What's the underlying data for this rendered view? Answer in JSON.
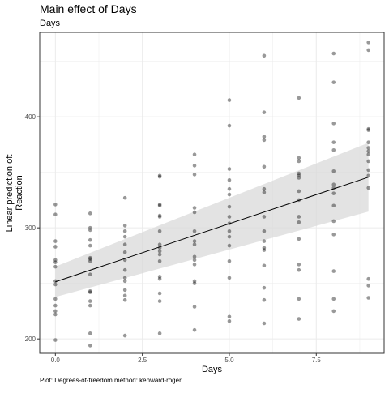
{
  "title": "Main effect of Days",
  "subtitle": "Days",
  "caption": "Plot: Degrees-of-freedom method: kenward-roger",
  "chart_data": {
    "type": "scatter",
    "title": "Main effect of Days",
    "subtitle": "Days",
    "xlabel": "Days",
    "ylabel_lines": [
      "Linear prediction of:",
      "Reaction"
    ],
    "xlim": [
      -0.45,
      9.45
    ],
    "ylim": [
      187,
      476
    ],
    "x_ticks": [
      0,
      2.5,
      5,
      7.5
    ],
    "x_tick_labels": [
      "0.0",
      "2.5",
      "5.0",
      "7.5"
    ],
    "y_ticks": [
      200,
      300,
      400
    ],
    "y_tick_labels": [
      "200",
      "300",
      "400"
    ],
    "grid": true,
    "legend": "none",
    "fit_line": {
      "x": [
        0,
        9
      ],
      "y": [
        251.4,
        345.6
      ]
    },
    "confidence_band": {
      "x": [
        0,
        9
      ],
      "lower": [
        237.7,
        314.6
      ],
      "upper": [
        265.1,
        376.6
      ]
    },
    "points": [
      {
        "x": 0,
        "y": 199
      },
      {
        "x": 0,
        "y": 222
      },
      {
        "x": 0,
        "y": 225
      },
      {
        "x": 0,
        "y": 230
      },
      {
        "x": 0,
        "y": 236
      },
      {
        "x": 0,
        "y": 249
      },
      {
        "x": 0,
        "y": 252
      },
      {
        "x": 0,
        "y": 265
      },
      {
        "x": 0,
        "y": 269
      },
      {
        "x": 0,
        "y": 271
      },
      {
        "x": 0,
        "y": 283
      },
      {
        "x": 0,
        "y": 288
      },
      {
        "x": 0,
        "y": 312
      },
      {
        "x": 0,
        "y": 321
      },
      {
        "x": 1,
        "y": 194
      },
      {
        "x": 1,
        "y": 205
      },
      {
        "x": 1,
        "y": 230
      },
      {
        "x": 1,
        "y": 234
      },
      {
        "x": 1,
        "y": 242
      },
      {
        "x": 1,
        "y": 243
      },
      {
        "x": 1,
        "y": 258
      },
      {
        "x": 1,
        "y": 270
      },
      {
        "x": 1,
        "y": 272
      },
      {
        "x": 1,
        "y": 273
      },
      {
        "x": 1,
        "y": 284
      },
      {
        "x": 1,
        "y": 289
      },
      {
        "x": 1,
        "y": 298
      },
      {
        "x": 1,
        "y": 300
      },
      {
        "x": 1,
        "y": 313
      },
      {
        "x": 2,
        "y": 203
      },
      {
        "x": 2,
        "y": 235
      },
      {
        "x": 2,
        "y": 239
      },
      {
        "x": 2,
        "y": 244
      },
      {
        "x": 2,
        "y": 252
      },
      {
        "x": 2,
        "y": 255
      },
      {
        "x": 2,
        "y": 262
      },
      {
        "x": 2,
        "y": 271
      },
      {
        "x": 2,
        "y": 278
      },
      {
        "x": 2,
        "y": 285
      },
      {
        "x": 2,
        "y": 292
      },
      {
        "x": 2,
        "y": 297
      },
      {
        "x": 2,
        "y": 302
      },
      {
        "x": 2,
        "y": 327
      },
      {
        "x": 3,
        "y": 205
      },
      {
        "x": 3,
        "y": 234
      },
      {
        "x": 3,
        "y": 241
      },
      {
        "x": 3,
        "y": 254
      },
      {
        "x": 3,
        "y": 256
      },
      {
        "x": 3,
        "y": 270
      },
      {
        "x": 3,
        "y": 276
      },
      {
        "x": 3,
        "y": 279
      },
      {
        "x": 3,
        "y": 282
      },
      {
        "x": 3,
        "y": 285
      },
      {
        "x": 3,
        "y": 297
      },
      {
        "x": 3,
        "y": 310
      },
      {
        "x": 3,
        "y": 311
      },
      {
        "x": 3,
        "y": 320
      },
      {
        "x": 3,
        "y": 321
      },
      {
        "x": 3,
        "y": 346
      },
      {
        "x": 3,
        "y": 347
      },
      {
        "x": 4,
        "y": 208
      },
      {
        "x": 4,
        "y": 229
      },
      {
        "x": 4,
        "y": 250
      },
      {
        "x": 4,
        "y": 252
      },
      {
        "x": 4,
        "y": 267
      },
      {
        "x": 4,
        "y": 271
      },
      {
        "x": 4,
        "y": 274
      },
      {
        "x": 4,
        "y": 285
      },
      {
        "x": 4,
        "y": 288
      },
      {
        "x": 4,
        "y": 297
      },
      {
        "x": 4,
        "y": 314
      },
      {
        "x": 4,
        "y": 318
      },
      {
        "x": 4,
        "y": 348
      },
      {
        "x": 4,
        "y": 356
      },
      {
        "x": 4,
        "y": 366
      },
      {
        "x": 5,
        "y": 216
      },
      {
        "x": 5,
        "y": 220
      },
      {
        "x": 5,
        "y": 255
      },
      {
        "x": 5,
        "y": 270
      },
      {
        "x": 5,
        "y": 284
      },
      {
        "x": 5,
        "y": 292
      },
      {
        "x": 5,
        "y": 297
      },
      {
        "x": 5,
        "y": 304
      },
      {
        "x": 5,
        "y": 310
      },
      {
        "x": 5,
        "y": 319
      },
      {
        "x": 5,
        "y": 330
      },
      {
        "x": 5,
        "y": 335
      },
      {
        "x": 5,
        "y": 343
      },
      {
        "x": 5,
        "y": 353
      },
      {
        "x": 5,
        "y": 392
      },
      {
        "x": 5,
        "y": 415
      },
      {
        "x": 6,
        "y": 214
      },
      {
        "x": 6,
        "y": 235
      },
      {
        "x": 6,
        "y": 246
      },
      {
        "x": 6,
        "y": 266
      },
      {
        "x": 6,
        "y": 280
      },
      {
        "x": 6,
        "y": 282
      },
      {
        "x": 6,
        "y": 288
      },
      {
        "x": 6,
        "y": 297
      },
      {
        "x": 6,
        "y": 310
      },
      {
        "x": 6,
        "y": 332
      },
      {
        "x": 6,
        "y": 335
      },
      {
        "x": 6,
        "y": 355
      },
      {
        "x": 6,
        "y": 379
      },
      {
        "x": 6,
        "y": 382
      },
      {
        "x": 6,
        "y": 404
      },
      {
        "x": 6,
        "y": 455
      },
      {
        "x": 7,
        "y": 218
      },
      {
        "x": 7,
        "y": 236
      },
      {
        "x": 7,
        "y": 262
      },
      {
        "x": 7,
        "y": 267
      },
      {
        "x": 7,
        "y": 290
      },
      {
        "x": 7,
        "y": 305
      },
      {
        "x": 7,
        "y": 310
      },
      {
        "x": 7,
        "y": 325
      },
      {
        "x": 7,
        "y": 333
      },
      {
        "x": 7,
        "y": 345
      },
      {
        "x": 7,
        "y": 347
      },
      {
        "x": 7,
        "y": 349
      },
      {
        "x": 7,
        "y": 360
      },
      {
        "x": 7,
        "y": 363
      },
      {
        "x": 7,
        "y": 417
      },
      {
        "x": 8,
        "y": 225
      },
      {
        "x": 8,
        "y": 236
      },
      {
        "x": 8,
        "y": 261
      },
      {
        "x": 8,
        "y": 294
      },
      {
        "x": 8,
        "y": 306
      },
      {
        "x": 8,
        "y": 320
      },
      {
        "x": 8,
        "y": 331
      },
      {
        "x": 8,
        "y": 336
      },
      {
        "x": 8,
        "y": 339
      },
      {
        "x": 8,
        "y": 351
      },
      {
        "x": 8,
        "y": 370
      },
      {
        "x": 8,
        "y": 377
      },
      {
        "x": 8,
        "y": 394
      },
      {
        "x": 8,
        "y": 431
      },
      {
        "x": 8,
        "y": 457
      },
      {
        "x": 9,
        "y": 237
      },
      {
        "x": 9,
        "y": 248
      },
      {
        "x": 9,
        "y": 254
      },
      {
        "x": 9,
        "y": 336
      },
      {
        "x": 9,
        "y": 347
      },
      {
        "x": 9,
        "y": 352
      },
      {
        "x": 9,
        "y": 360
      },
      {
        "x": 9,
        "y": 366
      },
      {
        "x": 9,
        "y": 369
      },
      {
        "x": 9,
        "y": 372
      },
      {
        "x": 9,
        "y": 377
      },
      {
        "x": 9,
        "y": 388
      },
      {
        "x": 9,
        "y": 389
      },
      {
        "x": 9,
        "y": 460
      },
      {
        "x": 9,
        "y": 467
      }
    ],
    "colors": {
      "points": "#000000",
      "line": "#000000",
      "band": "#d9d9d9",
      "grid": "#ebebeb",
      "panel_border": "#333333",
      "tick_text": "#4d4d4d"
    }
  }
}
